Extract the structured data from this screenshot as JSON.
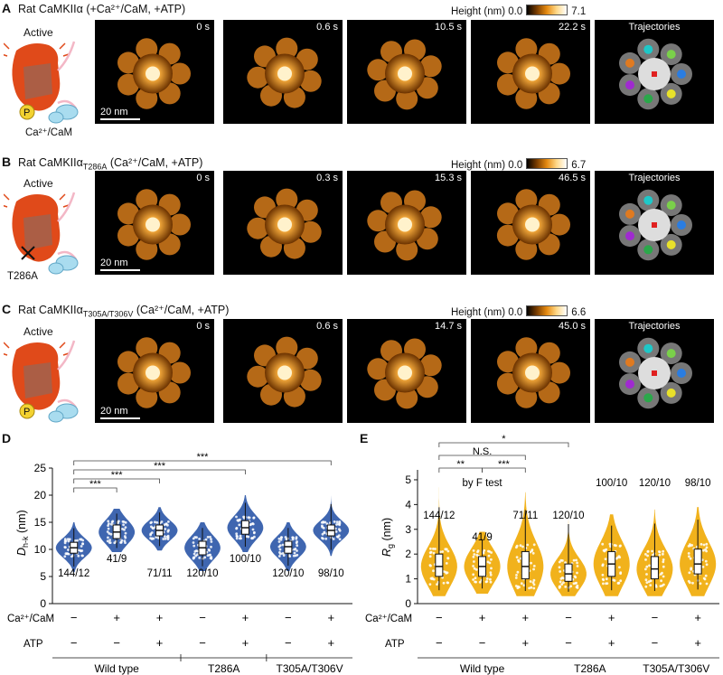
{
  "colors": {
    "afm_orange": "#e89a2a",
    "violin_blue": "#3f66b0",
    "violin_gold": "#f1b21c",
    "kinase_red": "#e04a1a"
  },
  "panels": [
    {
      "label": "A",
      "title_pre": "Rat CaMKIIα ",
      "title_sub": "",
      "title_post": "(+Ca²⁺/CaM, +ATP)",
      "state": "Active",
      "cartoon_labels": [
        "P",
        "Ca²⁺/CaM"
      ],
      "cb_label": "Height (nm)",
      "cb_min": "0.0",
      "cb_max": "7.1",
      "times": [
        "0 s",
        "0.6 s",
        "10.5 s",
        "22.2 s"
      ],
      "traj": "Trajectories",
      "scale": "20 nm"
    },
    {
      "label": "B",
      "title_pre": "Rat CaMKIIα",
      "title_sub": "T286A",
      "title_post": " (Ca²⁺/CaM, +ATP)",
      "state": "Active",
      "cartoon_labels": [
        "T286A"
      ],
      "cb_label": "Height (nm)",
      "cb_min": "0.0",
      "cb_max": "6.7",
      "times": [
        "0 s",
        "0.3 s",
        "15.3 s",
        "46.5 s"
      ],
      "traj": "Trajectories",
      "scale": "20 nm"
    },
    {
      "label": "C",
      "title_pre": "Rat CaMKIIα",
      "title_sub": "T305A/T306V",
      "title_post": " (Ca²⁺/CaM, +ATP)",
      "state": "Active",
      "cartoon_labels": [
        "P"
      ],
      "cb_label": "Height (nm)",
      "cb_min": "0.0",
      "cb_max": "6.6",
      "times": [
        "0 s",
        "0.6 s",
        "14.7 s",
        "45.0 s"
      ],
      "traj": "Trajectories",
      "scale": "20 nm"
    }
  ],
  "chart_data": [
    {
      "panel": "D",
      "type": "violin",
      "ylabel": "D_h-k (nm)",
      "ylabel_main": "D",
      "ylabel_sub": "h-k",
      "ylabel_unit": " (nm)",
      "ylim": [
        0,
        25
      ],
      "yticks": [
        "0",
        "5",
        "10",
        "15",
        "20",
        "25"
      ],
      "conditions": {
        "row1": "Ca²⁺/CaM",
        "row2": "ATP",
        "cam": [
          "−",
          "+",
          "+",
          "−",
          "+",
          "−",
          "+"
        ],
        "atp": [
          "−",
          "−",
          "+",
          "−",
          "+",
          "−",
          "+"
        ]
      },
      "groups": [
        {
          "name": "Wild type",
          "span": [
            0,
            2
          ]
        },
        {
          "name": "T286A",
          "span": [
            3,
            4
          ]
        },
        {
          "name": "T305A/T306V",
          "span": [
            5,
            6
          ]
        }
      ],
      "series": [
        {
          "n": "144/12",
          "median": 10.3,
          "q1": 9.3,
          "q3": 11.3,
          "min": 5.8,
          "max": 15.0
        },
        {
          "n": "41/9",
          "median": 13.2,
          "q1": 12.0,
          "q3": 14.5,
          "min": 9.5,
          "max": 17.5
        },
        {
          "n": "71/11",
          "median": 13.5,
          "q1": 12.5,
          "q3": 14.5,
          "min": 9.8,
          "max": 17.8
        },
        {
          "n": "120/10",
          "median": 10.3,
          "q1": 9.0,
          "q3": 11.5,
          "min": 6.0,
          "max": 15.0
        },
        {
          "n": "100/10",
          "median": 14.0,
          "q1": 12.8,
          "q3": 15.3,
          "min": 9.5,
          "max": 20.0
        },
        {
          "n": "120/10",
          "median": 10.5,
          "q1": 9.3,
          "q3": 11.5,
          "min": 6.0,
          "max": 15.0
        },
        {
          "n": "98/10",
          "median": 13.5,
          "q1": 12.5,
          "q3": 14.5,
          "min": 8.8,
          "max": 20.0
        }
      ],
      "brackets": [
        {
          "from": 0,
          "to": 1,
          "label": "***"
        },
        {
          "from": 0,
          "to": 2,
          "label": "***"
        },
        {
          "from": 0,
          "to": 4,
          "label": "***"
        },
        {
          "from": 0,
          "to": 6,
          "label": "***"
        }
      ]
    },
    {
      "panel": "E",
      "type": "violin",
      "ylabel": "R_g (nm)",
      "ylabel_main": "R",
      "ylabel_sub": "g",
      "ylabel_unit": " (nm)",
      "ylim": [
        0,
        5.4
      ],
      "yticks": [
        "0",
        "1",
        "2",
        "3",
        "4",
        "5"
      ],
      "conditions": {
        "row1": "Ca²⁺/CaM",
        "row2": "ATP",
        "cam": [
          "−",
          "+",
          "+",
          "−",
          "+",
          "−",
          "+"
        ],
        "atp": [
          "−",
          "−",
          "+",
          "−",
          "+",
          "−",
          "+"
        ]
      },
      "groups": [
        {
          "name": "Wild type",
          "span": [
            0,
            2
          ]
        },
        {
          "name": "T286A",
          "span": [
            3,
            4
          ]
        },
        {
          "name": "T305A/T306V",
          "span": [
            5,
            6
          ]
        }
      ],
      "series": [
        {
          "n": "144/12",
          "median": 1.5,
          "q1": 1.1,
          "q3": 2.0,
          "min": 0.3,
          "max": 4.7
        },
        {
          "n": "41/9",
          "median": 1.5,
          "q1": 1.1,
          "q3": 1.9,
          "min": 0.4,
          "max": 2.9
        },
        {
          "n": "71/11",
          "median": 1.5,
          "q1": 1.0,
          "q3": 2.1,
          "min": 0.3,
          "max": 4.5
        },
        {
          "n": "120/10",
          "median": 1.2,
          "q1": 0.9,
          "q3": 1.6,
          "min": 0.3,
          "max": 3.9
        },
        {
          "n": "100/10",
          "median": 1.6,
          "q1": 1.1,
          "q3": 2.1,
          "min": 0.3,
          "max": 3.6
        },
        {
          "n": "120/10",
          "median": 1.4,
          "q1": 1.0,
          "q3": 1.9,
          "min": 0.3,
          "max": 3.8
        },
        {
          "n": "98/10",
          "median": 1.6,
          "q1": 1.2,
          "q3": 2.2,
          "min": 0.3,
          "max": 3.9
        }
      ],
      "brackets": [
        {
          "from": 0,
          "to": 3,
          "label": "*"
        },
        {
          "from": 0,
          "to": 2,
          "label": "N.S."
        },
        {
          "from": 0,
          "to": 1,
          "label": "**"
        },
        {
          "from": 1,
          "to": 2,
          "label": "***"
        }
      ],
      "annotation": "by F test"
    }
  ]
}
